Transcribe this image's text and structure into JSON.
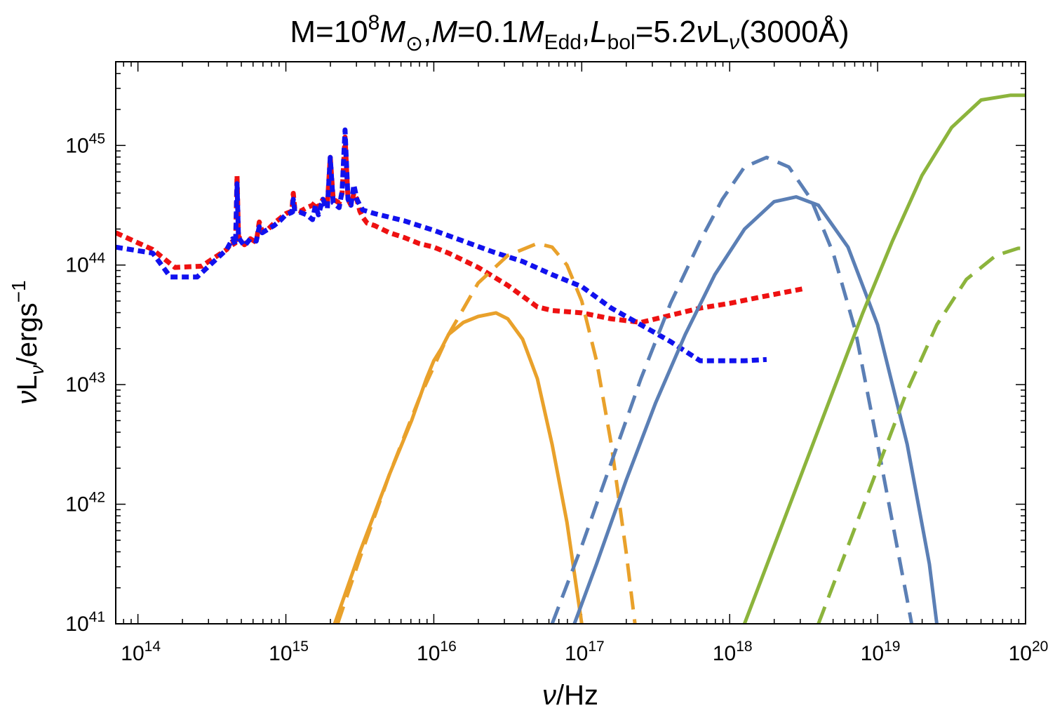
{
  "chart_data": {
    "type": "line",
    "log_x": true,
    "log_y": true,
    "xlim_exp": [
      13.85,
      20.0
    ],
    "ylim_exp": [
      41.0,
      45.7
    ],
    "title_parts": {
      "m": "M=10",
      "m_exp": "8",
      "msun": "M",
      "sun_sym": "⊙",
      "mdot": "M",
      "mdot_eq": "=0.1",
      "mdot_edd": "M",
      "edd_sub": "Edd",
      "comma1": ",",
      "comma2": ",",
      "lbol": "L",
      "bol_sub": "bol",
      "lbol_eq": "=5.2",
      "nu": "ν",
      "lnu": "L",
      "nu_sub": "ν",
      "wl": "(3000Å)"
    },
    "xlabel_parts": {
      "nu": "ν",
      "rest": "/Hz"
    },
    "ylabel_parts": {
      "nu": "ν",
      "L": "L",
      "sub": "ν",
      "rest": "/ergs",
      "exp": "−1"
    },
    "x_ticks": [
      {
        "base": "10",
        "exp": "14",
        "value": 14
      },
      {
        "base": "10",
        "exp": "15",
        "value": 15
      },
      {
        "base": "10",
        "exp": "16",
        "value": 16
      },
      {
        "base": "10",
        "exp": "17",
        "value": 17
      },
      {
        "base": "10",
        "exp": "18",
        "value": 18
      },
      {
        "base": "10",
        "exp": "19",
        "value": 19
      },
      {
        "base": "10",
        "exp": "20",
        "value": 20
      }
    ],
    "y_ticks": [
      {
        "base": "10",
        "exp": "41",
        "value": 41
      },
      {
        "base": "10",
        "exp": "42",
        "value": 42
      },
      {
        "base": "10",
        "exp": "43",
        "value": 43
      },
      {
        "base": "10",
        "exp": "44",
        "value": 44
      },
      {
        "base": "10",
        "exp": "45",
        "value": 45
      }
    ],
    "series": [
      {
        "name": "composite-sed-red",
        "color": "#ee1111",
        "style": "dotted",
        "width": 7,
        "points": [
          [
            13.85,
            44.27
          ],
          [
            14.1,
            44.13
          ],
          [
            14.25,
            43.98
          ],
          [
            14.43,
            43.99
          ],
          [
            14.6,
            44.13
          ],
          [
            14.64,
            44.2
          ],
          [
            14.66,
            44.16
          ],
          [
            14.67,
            44.75
          ],
          [
            14.68,
            44.24
          ],
          [
            14.72,
            44.17
          ],
          [
            14.76,
            44.22
          ],
          [
            14.8,
            44.19
          ],
          [
            14.82,
            44.36
          ],
          [
            14.84,
            44.28
          ],
          [
            14.88,
            44.3
          ],
          [
            14.92,
            44.35
          ],
          [
            14.96,
            44.39
          ],
          [
            15.0,
            44.43
          ],
          [
            15.04,
            44.45
          ],
          [
            15.05,
            44.6
          ],
          [
            15.06,
            44.47
          ],
          [
            15.1,
            44.45
          ],
          [
            15.14,
            44.48
          ],
          [
            15.18,
            44.5
          ],
          [
            15.2,
            44.53
          ],
          [
            15.22,
            44.48
          ],
          [
            15.25,
            44.55
          ],
          [
            15.28,
            44.5
          ],
          [
            15.3,
            44.9
          ],
          [
            15.32,
            44.55
          ],
          [
            15.36,
            44.52
          ],
          [
            15.38,
            44.6
          ],
          [
            15.4,
            45.07
          ],
          [
            15.42,
            44.55
          ],
          [
            15.44,
            44.5
          ],
          [
            15.46,
            44.6
          ],
          [
            15.48,
            44.55
          ],
          [
            15.5,
            44.45
          ],
          [
            15.52,
            44.4
          ],
          [
            15.55,
            44.35
          ],
          [
            15.6,
            44.33
          ],
          [
            15.7,
            44.27
          ],
          [
            15.8,
            44.23
          ],
          [
            15.9,
            44.18
          ],
          [
            16.0,
            44.15
          ],
          [
            16.1,
            44.1
          ],
          [
            16.3,
            43.98
          ],
          [
            16.5,
            43.83
          ],
          [
            16.7,
            43.65
          ],
          [
            16.8,
            43.62
          ],
          [
            17.0,
            43.6
          ],
          [
            17.2,
            43.55
          ],
          [
            17.4,
            43.52
          ],
          [
            17.6,
            43.58
          ],
          [
            17.8,
            43.64
          ],
          [
            18.0,
            43.68
          ],
          [
            18.2,
            43.73
          ],
          [
            18.49,
            43.8
          ]
        ]
      },
      {
        "name": "composite-sed-blue",
        "color": "#1111ee",
        "style": "dotted",
        "width": 7,
        "points": [
          [
            13.85,
            44.15
          ],
          [
            14.1,
            44.1
          ],
          [
            14.22,
            43.9
          ],
          [
            14.4,
            43.9
          ],
          [
            14.6,
            44.13
          ],
          [
            14.64,
            44.22
          ],
          [
            14.66,
            44.17
          ],
          [
            14.67,
            44.68
          ],
          [
            14.68,
            44.23
          ],
          [
            14.72,
            44.16
          ],
          [
            14.76,
            44.22
          ],
          [
            14.8,
            44.2
          ],
          [
            14.82,
            44.32
          ],
          [
            14.84,
            44.27
          ],
          [
            14.88,
            44.3
          ],
          [
            14.92,
            44.33
          ],
          [
            14.96,
            44.37
          ],
          [
            15.0,
            44.42
          ],
          [
            15.04,
            44.44
          ],
          [
            15.05,
            44.55
          ],
          [
            15.06,
            44.45
          ],
          [
            15.1,
            44.44
          ],
          [
            15.14,
            44.42
          ],
          [
            15.18,
            44.38
          ],
          [
            15.2,
            44.5
          ],
          [
            15.22,
            44.42
          ],
          [
            15.25,
            44.55
          ],
          [
            15.28,
            44.47
          ],
          [
            15.3,
            44.9
          ],
          [
            15.32,
            44.52
          ],
          [
            15.36,
            44.48
          ],
          [
            15.38,
            44.62
          ],
          [
            15.4,
            45.13
          ],
          [
            15.42,
            44.55
          ],
          [
            15.44,
            44.5
          ],
          [
            15.46,
            44.67
          ],
          [
            15.48,
            44.55
          ],
          [
            15.5,
            44.5
          ],
          [
            15.52,
            44.46
          ],
          [
            15.6,
            44.43
          ],
          [
            15.8,
            44.37
          ],
          [
            16.0,
            44.29
          ],
          [
            16.2,
            44.2
          ],
          [
            16.4,
            44.11
          ],
          [
            16.6,
            44.03
          ],
          [
            16.8,
            43.92
          ],
          [
            17.0,
            43.82
          ],
          [
            17.2,
            43.64
          ],
          [
            17.4,
            43.5
          ],
          [
            17.6,
            43.36
          ],
          [
            17.8,
            43.2
          ],
          [
            17.95,
            43.2
          ],
          [
            18.1,
            43.2
          ],
          [
            18.25,
            43.21
          ]
        ]
      },
      {
        "name": "disk-cool-solid",
        "color": "#e9a12b",
        "style": "solid",
        "width": 5,
        "points": [
          [
            15.33,
            41.0
          ],
          [
            15.5,
            41.6
          ],
          [
            15.7,
            42.25
          ],
          [
            15.85,
            42.7
          ],
          [
            15.95,
            43.05
          ],
          [
            16.0,
            43.2
          ],
          [
            16.05,
            43.3
          ],
          [
            16.1,
            43.42
          ],
          [
            16.2,
            43.52
          ],
          [
            16.3,
            43.57
          ],
          [
            16.42,
            43.6
          ],
          [
            16.5,
            43.55
          ],
          [
            16.6,
            43.38
          ],
          [
            16.7,
            43.05
          ],
          [
            16.8,
            42.5
          ],
          [
            16.9,
            41.85
          ],
          [
            17.0,
            41.0
          ]
        ]
      },
      {
        "name": "disk-cool-dashed",
        "color": "#e9a12b",
        "style": "dashed",
        "width": 5,
        "points": [
          [
            15.35,
            41.0
          ],
          [
            15.5,
            41.55
          ],
          [
            15.7,
            42.25
          ],
          [
            15.9,
            42.88
          ],
          [
            16.1,
            43.42
          ],
          [
            16.3,
            43.85
          ],
          [
            16.5,
            44.08
          ],
          [
            16.7,
            44.18
          ],
          [
            16.8,
            44.15
          ],
          [
            16.9,
            44.0
          ],
          [
            17.0,
            43.7
          ],
          [
            17.1,
            43.2
          ],
          [
            17.2,
            42.5
          ],
          [
            17.3,
            41.6
          ],
          [
            17.36,
            41.0
          ]
        ]
      },
      {
        "name": "disk-hot-solid",
        "color": "#5b7fb5",
        "style": "solid",
        "width": 5,
        "points": [
          [
            16.95,
            41.0
          ],
          [
            17.1,
            41.5
          ],
          [
            17.3,
            42.2
          ],
          [
            17.5,
            42.85
          ],
          [
            17.7,
            43.42
          ],
          [
            17.9,
            43.92
          ],
          [
            18.1,
            44.3
          ],
          [
            18.3,
            44.53
          ],
          [
            18.45,
            44.57
          ],
          [
            18.6,
            44.5
          ],
          [
            18.8,
            44.15
          ],
          [
            19.0,
            43.5
          ],
          [
            19.2,
            42.5
          ],
          [
            19.35,
            41.5
          ],
          [
            19.4,
            41.0
          ]
        ]
      },
      {
        "name": "disk-hot-dashed",
        "color": "#5b7fb5",
        "style": "dashed",
        "width": 5,
        "points": [
          [
            16.8,
            41.0
          ],
          [
            17.0,
            41.65
          ],
          [
            17.2,
            42.35
          ],
          [
            17.4,
            43.05
          ],
          [
            17.6,
            43.68
          ],
          [
            17.8,
            44.2
          ],
          [
            17.95,
            44.55
          ],
          [
            18.1,
            44.82
          ],
          [
            18.25,
            44.9
          ],
          [
            18.4,
            44.82
          ],
          [
            18.55,
            44.55
          ],
          [
            18.7,
            44.1
          ],
          [
            18.85,
            43.45
          ],
          [
            19.0,
            42.5
          ],
          [
            19.2,
            41.2
          ],
          [
            19.23,
            41.0
          ]
        ]
      },
      {
        "name": "hard-xray-solid",
        "color": "#8cb43c",
        "style": "solid",
        "width": 5,
        "points": [
          [
            18.1,
            41.0
          ],
          [
            18.3,
            41.65
          ],
          [
            18.5,
            42.3
          ],
          [
            18.7,
            42.95
          ],
          [
            18.9,
            43.6
          ],
          [
            19.1,
            44.2
          ],
          [
            19.3,
            44.75
          ],
          [
            19.5,
            45.15
          ],
          [
            19.7,
            45.38
          ],
          [
            19.9,
            45.42
          ],
          [
            20.0,
            45.42
          ]
        ]
      },
      {
        "name": "hard-xray-dashed",
        "color": "#8cb43c",
        "style": "dashed",
        "width": 5,
        "points": [
          [
            18.6,
            41.0
          ],
          [
            18.8,
            41.65
          ],
          [
            19.0,
            42.3
          ],
          [
            19.2,
            42.95
          ],
          [
            19.4,
            43.5
          ],
          [
            19.6,
            43.88
          ],
          [
            19.8,
            44.08
          ],
          [
            19.95,
            44.14
          ],
          [
            20.0,
            44.14
          ]
        ]
      }
    ]
  }
}
